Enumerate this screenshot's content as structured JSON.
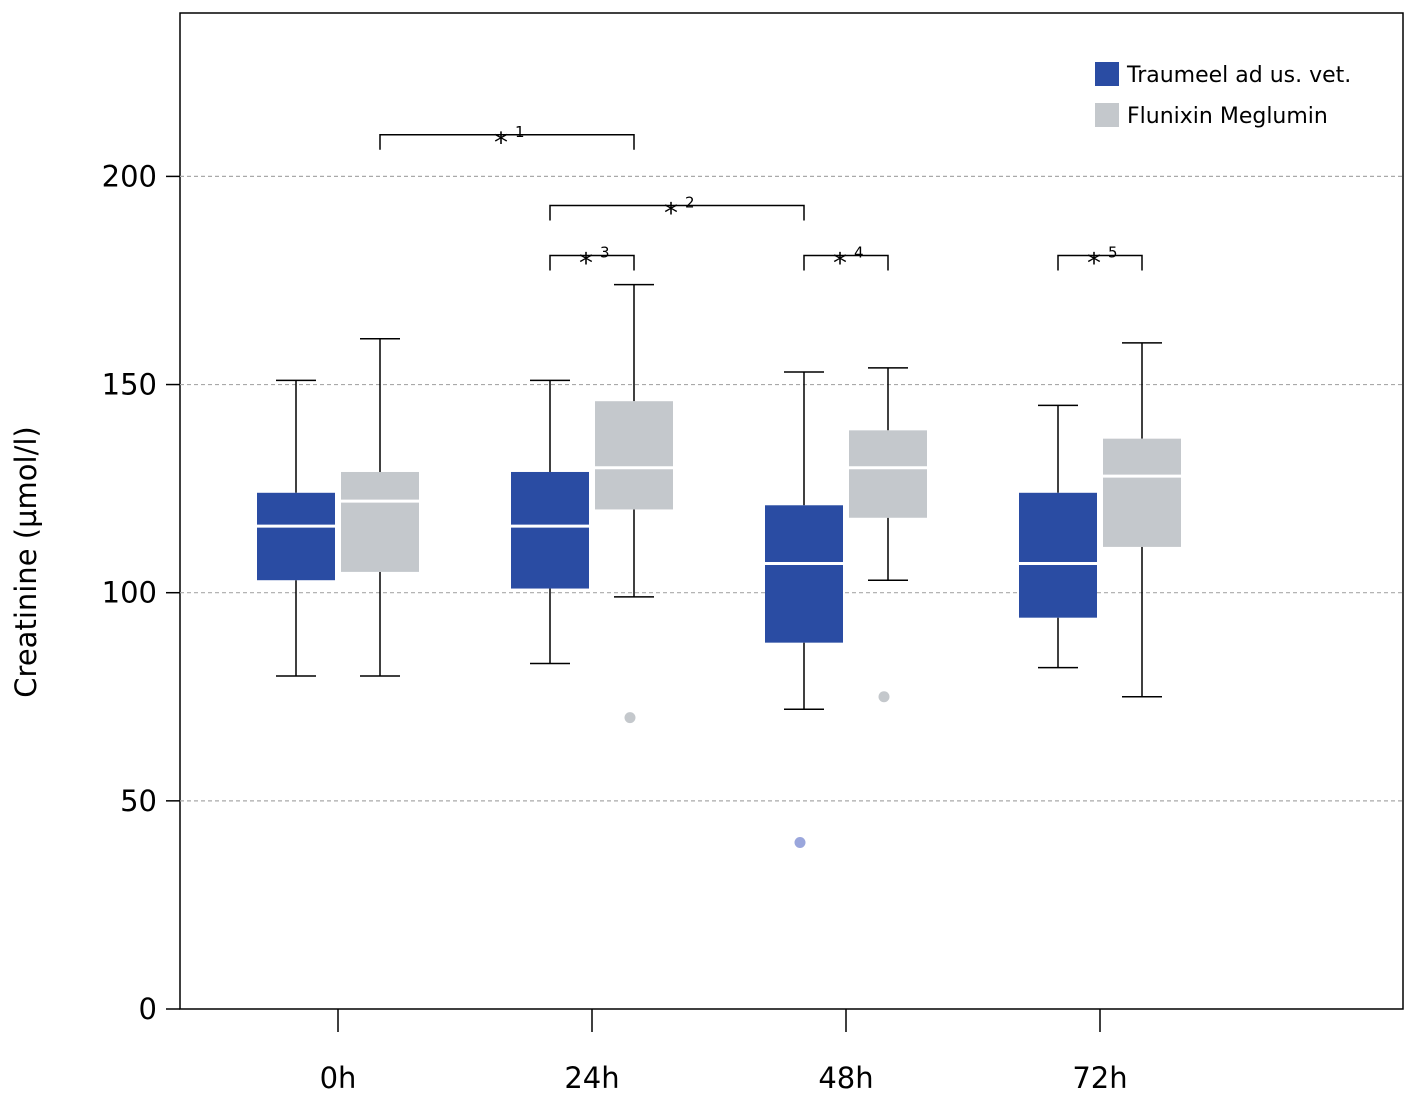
{
  "chart_data": {
    "type": "box",
    "title": "",
    "xlabel": "",
    "ylabel": "Creatinine (µmol/l)",
    "ylim": [
      0,
      240
    ],
    "yticks": [
      0,
      50,
      100,
      150,
      200
    ],
    "ytick_labels": [
      "0",
      "50",
      "100",
      "150",
      "200"
    ],
    "grid_lines_at": [
      50,
      100,
      150,
      200
    ],
    "categories": [
      "0h",
      "24h",
      "48h",
      "72h"
    ],
    "legend_position": "top-right",
    "series": [
      {
        "name": "Traumeel ad us. vet.",
        "color": "#2a4ca3",
        "boxes": [
          {
            "whisker_low": 80,
            "q1": 103,
            "median": 116,
            "q3": 124,
            "whisker_high": 151,
            "outliers": []
          },
          {
            "whisker_low": 83,
            "q1": 101,
            "median": 116,
            "q3": 129,
            "whisker_high": 151,
            "outliers": []
          },
          {
            "whisker_low": 72,
            "q1": 88,
            "median": 107,
            "q3": 121,
            "whisker_high": 153,
            "outliers": [
              40
            ]
          },
          {
            "whisker_low": 82,
            "q1": 94,
            "median": 107,
            "q3": 124,
            "whisker_high": 145,
            "outliers": []
          }
        ]
      },
      {
        "name": "Flunixin Meglumin",
        "color": "#c4c8cc",
        "boxes": [
          {
            "whisker_low": 80,
            "q1": 105,
            "median": 122,
            "q3": 129,
            "whisker_high": 161,
            "outliers": []
          },
          {
            "whisker_low": 99,
            "q1": 120,
            "median": 130,
            "q3": 146,
            "whisker_high": 174,
            "outliers": [
              70
            ]
          },
          {
            "whisker_low": 103,
            "q1": 118,
            "median": 130,
            "q3": 139,
            "whisker_high": 154,
            "outliers": [
              75
            ]
          },
          {
            "whisker_low": 75,
            "q1": 111,
            "median": 128,
            "q3": 137,
            "whisker_high": 160,
            "outliers": []
          }
        ]
      }
    ],
    "outlier_colors": [
      "#9aa6dc",
      "#c4c8cc"
    ],
    "significance": [
      {
        "label": "*",
        "sup": "1",
        "from": {
          "category": 0,
          "series": 1
        },
        "to": {
          "category": 1,
          "series": 1
        },
        "y": 210
      },
      {
        "label": "*",
        "sup": "2",
        "from": {
          "category": 1,
          "series": 0
        },
        "to": {
          "category": 2,
          "series": 0
        },
        "y": 193
      },
      {
        "label": "*",
        "sup": "3",
        "from": {
          "category": 1,
          "series": 0
        },
        "to": {
          "category": 1,
          "series": 1
        },
        "y": 181
      },
      {
        "label": "*",
        "sup": "4",
        "from": {
          "category": 2,
          "series": 0
        },
        "to": {
          "category": 2,
          "series": 1
        },
        "y": 181
      },
      {
        "label": "*",
        "sup": "5",
        "from": {
          "category": 3,
          "series": 0
        },
        "to": {
          "category": 3,
          "series": 1
        },
        "y": 181
      }
    ]
  }
}
